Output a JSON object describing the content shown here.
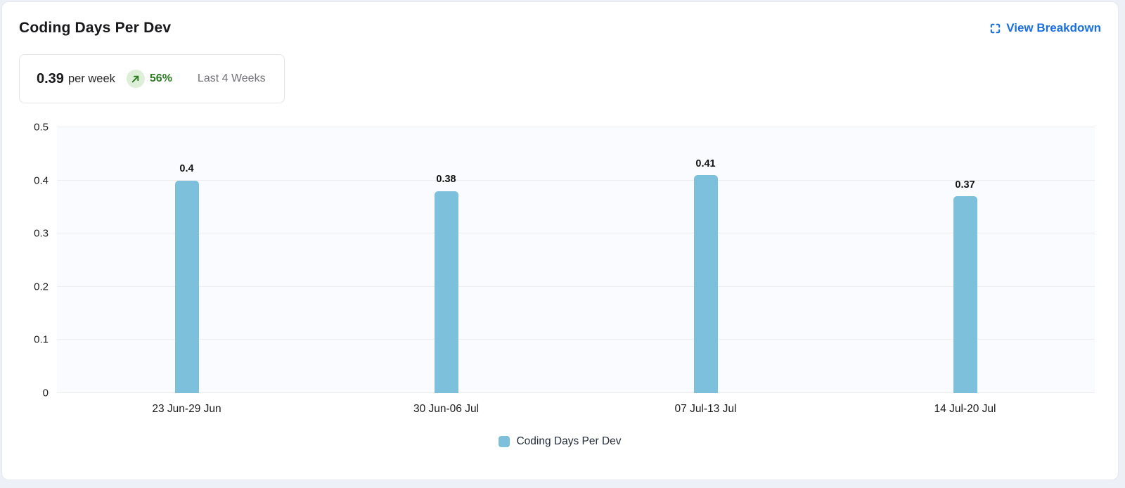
{
  "page": {
    "background": "#edf0f6",
    "card_border": "#e4e7ec"
  },
  "header": {
    "title": "Coding Days Per Dev",
    "action": {
      "label": "View Breakdown",
      "icon": "expand-icon",
      "color": "#1a6fe0"
    }
  },
  "summary": {
    "value": "0.39",
    "unit": "per week",
    "trend": {
      "direction": "up",
      "percent": "56%",
      "text_color": "#2d7d23",
      "badge_bg": "#ddefd8"
    },
    "period": "Last 4 Weeks"
  },
  "chart_data": {
    "type": "bar",
    "title": "Coding Days Per Dev",
    "categories": [
      "23 Jun-29 Jun",
      "30 Jun-06 Jul",
      "07 Jul-13 Jul",
      "14 Jul-20 Jul"
    ],
    "values": [
      0.4,
      0.38,
      0.41,
      0.37
    ],
    "value_labels": [
      "0.4",
      "0.38",
      "0.41",
      "0.37"
    ],
    "xlabel": "",
    "ylabel": "",
    "ylim": [
      0,
      0.5
    ],
    "yticks": [
      0,
      0.1,
      0.2,
      0.3,
      0.4,
      0.5
    ],
    "ytick_labels": [
      "0",
      "0.1",
      "0.2",
      "0.3",
      "0.4",
      "0.5"
    ],
    "grid": true,
    "grid_color": "#ededf0",
    "plot_bg": "#fafbfe",
    "bar_color": "#7cc0dc",
    "legend_position": "bottom",
    "legend": [
      {
        "label": "Coding Days Per Dev",
        "color": "#7cc0dc"
      }
    ]
  }
}
